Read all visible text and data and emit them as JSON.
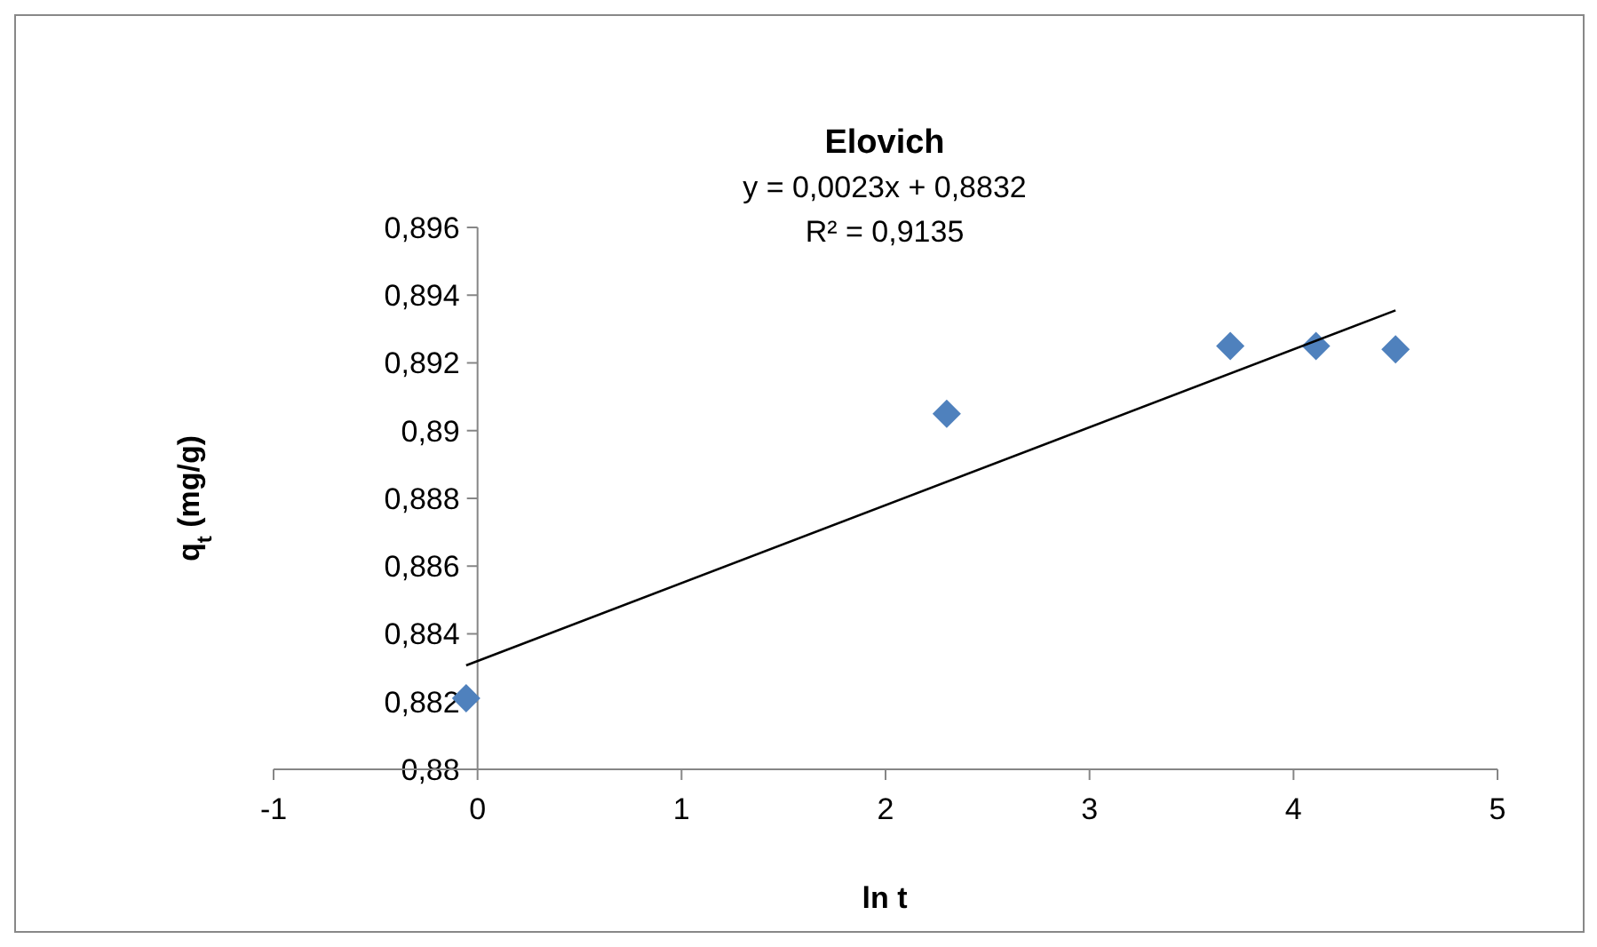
{
  "chart_data": {
    "type": "scatter",
    "title": "Elovich",
    "xlabel": "ln t",
    "ylabel": "q$_{t}$ (mg/g)",
    "annotations": [
      "y = 0,0023x + 0,8832",
      "R² = 0,9135"
    ],
    "series": [
      {
        "color": "#4f81bd",
        "x": [
          -0.056,
          2.3,
          3.69,
          4.11,
          4.5
        ],
        "values": [
          0.8821,
          0.8905,
          0.8925,
          0.8925,
          0.8924
        ],
        "marker": "diamond"
      },
      {
        "type": "line",
        "color": "#000000",
        "x": [
          -0.056,
          4.5
        ],
        "values": [
          0.88307,
          0.89355
        ],
        "marker": "none",
        "line_style": "solid"
      }
    ],
    "xlim": [
      -1,
      5
    ],
    "xticks": [
      {
        "value": -1,
        "label": "-1"
      },
      0,
      1,
      2,
      3,
      4,
      5
    ],
    "ylim": [
      0.88,
      0.896
    ],
    "yticks": [
      {
        "value": 0.88,
        "label": "0,88"
      },
      {
        "value": 0.882,
        "label": "0,882"
      },
      {
        "value": 0.884,
        "label": "0,884"
      },
      {
        "value": 0.886,
        "label": "0,886"
      },
      {
        "value": 0.888,
        "label": "0,888"
      },
      {
        "value": 0.89,
        "label": "0,89"
      },
      {
        "value": 0.892,
        "label": "0,892"
      },
      {
        "value": 0.894,
        "label": "0,894"
      },
      {
        "value": 0.896,
        "label": "0,896"
      }
    ],
    "grid": false
  }
}
